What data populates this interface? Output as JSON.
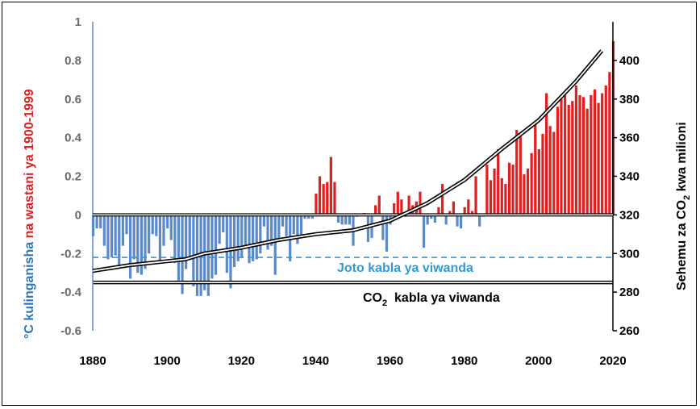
{
  "chart_data": {
    "type": "bar",
    "y_left_label": {
      "part1": "°C kulinganisha ",
      "part2": "na wastani ya 1900-1999",
      "color1": "#2e75b6",
      "color2": "#e02020"
    },
    "y_right_label": {
      "part1": "Sehemu za CO",
      "sub": "2",
      "part2": " kwa milioni"
    },
    "x_ticks": [
      "1880",
      "1900",
      "1920",
      "1940",
      "1960",
      "1980",
      "2000",
      "2020"
    ],
    "y_left_ticks": [
      "1",
      "0.8",
      "0.6",
      "0.4",
      "0.2",
      "0",
      "-0.2",
      "-0.4",
      "-0.6"
    ],
    "y_right_ticks": [
      "400",
      "380",
      "360",
      "340",
      "320",
      "300",
      "280",
      "260"
    ],
    "xlim": [
      1880,
      2020
    ],
    "ylim_left": [
      -0.6,
      1.0
    ],
    "ylim_right": [
      260,
      420
    ],
    "annotations": {
      "preindustrial_temp": {
        "text": "Joto kabla ya viwanda",
        "value": -0.22,
        "color": "#2e9bd6"
      },
      "preindustrial_co2": {
        "text_a": "CO",
        "sub": "2",
        "text_b": "  kabla ya viwanda",
        "value_ppm": 285
      }
    },
    "colors": {
      "negative": "#5b8ac8",
      "positive": "#e02020",
      "co2_line": "#000000"
    },
    "series": [
      {
        "kind": "bars",
        "x_start": 1880,
        "values": [
          -0.11,
          -0.07,
          -0.07,
          -0.16,
          -0.23,
          -0.22,
          -0.21,
          -0.26,
          -0.16,
          -0.1,
          -0.33,
          -0.23,
          -0.3,
          -0.31,
          -0.28,
          -0.2,
          -0.1,
          -0.11,
          -0.25,
          -0.16,
          -0.07,
          -0.13,
          -0.25,
          -0.34,
          -0.41,
          -0.28,
          -0.22,
          -0.37,
          -0.42,
          -0.42,
          -0.39,
          -0.42,
          -0.33,
          -0.31,
          -0.15,
          -0.09,
          -0.3,
          -0.38,
          -0.27,
          -0.24,
          -0.22,
          -0.17,
          -0.25,
          -0.24,
          -0.23,
          -0.2,
          -0.06,
          -0.18,
          -0.16,
          -0.31,
          -0.12,
          -0.06,
          -0.11,
          -0.24,
          -0.1,
          -0.15,
          -0.11,
          -0.02,
          -0.02,
          -0.02,
          0.11,
          0.2,
          0.16,
          0.17,
          0.3,
          0.17,
          -0.04,
          -0.05,
          -0.05,
          -0.05,
          -0.16,
          -0.01,
          0.0,
          0.01,
          -0.14,
          -0.12,
          0.05,
          0.1,
          -0.13,
          -0.19,
          -0.05,
          0.06,
          0.12,
          0.08,
          -0.01,
          0.1,
          0.05,
          0.07,
          0.12,
          -0.17,
          -0.05,
          -0.02,
          -0.04,
          0.04,
          0.16,
          -0.05,
          0.02,
          0.07,
          -0.06,
          -0.07,
          0.04,
          0.08,
          0.02,
          0.2,
          -0.06,
          -0.01,
          0.26,
          0.18,
          0.24,
          0.34,
          0.19,
          0.16,
          0.27,
          0.26,
          0.44,
          0.42,
          0.21,
          0.24,
          0.32,
          0.47,
          0.34,
          0.42,
          0.63,
          0.46,
          0.43,
          0.56,
          0.6,
          0.62,
          0.57,
          0.59,
          0.67,
          0.62,
          0.61,
          0.55,
          0.62,
          0.65,
          0.58,
          0.63,
          0.67,
          0.74,
          0.9
        ]
      },
      {
        "kind": "line",
        "name": "CO2",
        "x": [
          1880,
          1890,
          1900,
          1905,
          1910,
          1920,
          1930,
          1940,
          1950,
          1960,
          1970,
          1980,
          1990,
          2000,
          2010,
          2017
        ],
        "y": [
          291,
          294,
          296,
          297,
          300,
          303,
          307,
          310,
          312,
          317,
          326,
          338,
          354,
          369,
          389,
          405
        ]
      }
    ]
  }
}
